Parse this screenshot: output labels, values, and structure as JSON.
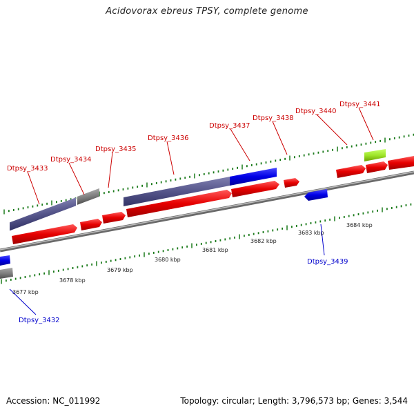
{
  "title": "Acidovorax ebreus TPSY, complete genome",
  "footer": {
    "accession": "Accession: NC_011992",
    "summary": "Topology: circular; Length: 3,796,573 bp; Genes: 3,544"
  },
  "colors": {
    "forward_gene": "#e00000",
    "reverse_gene": "#0000e0",
    "rna": "#7fd400",
    "operon": "#55558a",
    "misc": "#808080",
    "backbone": "#9a9a9a",
    "tick": "#1a7a1a",
    "forward_label": "#cc0000",
    "reverse_label": "#0000cc"
  },
  "scale": {
    "ticks": [
      "3677 kbp",
      "3678 kbp",
      "3679 kbp",
      "3680 kbp",
      "3681 kbp",
      "3682 kbp",
      "3683 kbp",
      "3684 kbp"
    ]
  },
  "forward_labels": [
    "Dtpsy_3433",
    "Dtpsy_3434",
    "Dtpsy_3435",
    "Dtpsy_3436",
    "Dtpsy_3437",
    "Dtpsy_3438",
    "Dtpsy_3440",
    "Dtpsy_3441"
  ],
  "reverse_labels": [
    "Dtpsy_3432",
    "Dtpsy_3439"
  ]
}
